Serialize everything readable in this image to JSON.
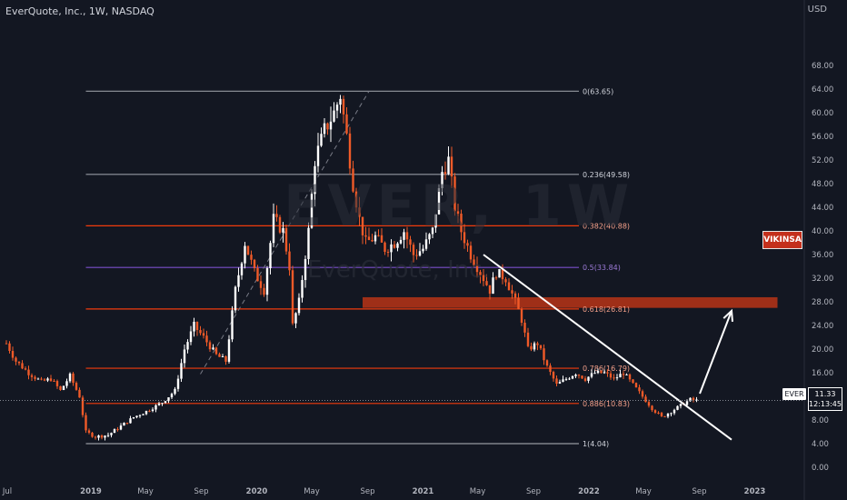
{
  "header": {
    "title": "EverQuote, Inc., 1W, NASDAQ"
  },
  "axis": {
    "currency": "USD"
  },
  "watermark": {
    "symbol_tf": "EVER, 1W",
    "company": "EverQuote, Inc."
  },
  "badge": {
    "label": "VIKINSA"
  },
  "price": {
    "symbol": "EVER",
    "last": "11.33",
    "countdown": "12:13:45"
  },
  "colors": {
    "background": "#131722",
    "up": "#ffffff",
    "down": "#f05a28",
    "fib_red": "#f23b0c",
    "fib_purple": "#7b4fc9",
    "fib_gray": "#9598a1",
    "zone": "#b83416",
    "arrow": "#ffffff"
  },
  "chart_data": {
    "type": "candlestick",
    "title": "EverQuote, Inc., 1W, NASDAQ",
    "xlabel": "",
    "ylabel": "",
    "ylim": [
      -1.5,
      76
    ],
    "y_ticks": [
      "0.00",
      "4.00",
      "8.00",
      "12.00",
      "16.00",
      "20.00",
      "24.00",
      "28.00",
      "32.00",
      "36.00",
      "40.00",
      "44.00",
      "48.00",
      "52.00",
      "56.00",
      "60.00",
      "64.00",
      "68.00"
    ],
    "x_ticks": [
      {
        "label": "Jul",
        "date": "2018-07-01"
      },
      {
        "label": "2019",
        "date": "2019-01-01"
      },
      {
        "label": "May",
        "date": "2019-05-01"
      },
      {
        "label": "Sep",
        "date": "2019-09-01"
      },
      {
        "label": "2020",
        "date": "2020-01-01"
      },
      {
        "label": "May",
        "date": "2020-05-01"
      },
      {
        "label": "Sep",
        "date": "2020-09-01"
      },
      {
        "label": "2021",
        "date": "2021-01-01"
      },
      {
        "label": "May",
        "date": "2021-05-01"
      },
      {
        "label": "Sep",
        "date": "2021-09-01"
      },
      {
        "label": "2022",
        "date": "2022-01-01"
      },
      {
        "label": "May",
        "date": "2022-05-01"
      },
      {
        "label": "Sep",
        "date": "2022-09-01"
      },
      {
        "label": "2023",
        "date": "2023-01-01"
      }
    ],
    "xlim": [
      "2018-06-15",
      "2023-04-20"
    ],
    "price_path": [
      [
        "2018-06-29",
        21
      ],
      [
        "2018-07-20",
        18
      ],
      [
        "2018-08-17",
        16
      ],
      [
        "2018-09-14",
        14.5
      ],
      [
        "2018-10-05",
        15
      ],
      [
        "2018-10-26",
        13
      ],
      [
        "2018-11-16",
        15.5
      ],
      [
        "2018-12-07",
        12
      ],
      [
        "2018-12-21",
        6
      ],
      [
        "2019-01-11",
        5.2
      ],
      [
        "2019-02-08",
        5.5
      ],
      [
        "2019-03-08",
        7
      ],
      [
        "2019-04-05",
        8.5
      ],
      [
        "2019-05-03",
        9.5
      ],
      [
        "2019-06-07",
        11
      ],
      [
        "2019-07-05",
        13
      ],
      [
        "2019-07-26",
        20
      ],
      [
        "2019-08-16",
        24
      ],
      [
        "2019-09-06",
        22
      ],
      [
        "2019-10-04",
        19
      ],
      [
        "2019-10-25",
        18
      ],
      [
        "2019-11-15",
        30
      ],
      [
        "2019-12-06",
        38
      ],
      [
        "2019-12-27",
        33
      ],
      [
        "2020-01-17",
        30
      ],
      [
        "2020-02-07",
        42
      ],
      [
        "2020-02-28",
        40
      ],
      [
        "2020-03-13",
        34
      ],
      [
        "2020-03-20",
        24
      ],
      [
        "2020-04-03",
        28
      ],
      [
        "2020-04-24",
        40
      ],
      [
        "2020-05-08",
        52
      ],
      [
        "2020-05-29",
        57
      ],
      [
        "2020-06-19",
        60
      ],
      [
        "2020-07-03",
        63
      ],
      [
        "2020-07-17",
        56
      ],
      [
        "2020-07-31",
        48
      ],
      [
        "2020-08-14",
        42
      ],
      [
        "2020-08-28",
        38
      ],
      [
        "2020-09-18",
        39
      ],
      [
        "2020-10-09",
        37
      ],
      [
        "2020-10-30",
        38
      ],
      [
        "2020-11-20",
        40
      ],
      [
        "2020-12-11",
        36
      ],
      [
        "2021-01-01",
        37
      ],
      [
        "2021-01-22",
        40
      ],
      [
        "2021-02-12",
        50
      ],
      [
        "2021-02-26",
        52
      ],
      [
        "2021-03-12",
        44
      ],
      [
        "2021-03-26",
        40
      ],
      [
        "2021-04-16",
        36
      ],
      [
        "2021-05-07",
        33
      ],
      [
        "2021-05-28",
        30
      ],
      [
        "2021-06-11",
        33
      ],
      [
        "2021-07-02",
        32
      ],
      [
        "2021-07-23",
        28
      ],
      [
        "2021-08-06",
        25
      ],
      [
        "2021-08-20",
        20
      ],
      [
        "2021-09-10",
        21
      ],
      [
        "2021-10-01",
        17
      ],
      [
        "2021-10-22",
        14
      ],
      [
        "2021-11-12",
        15
      ],
      [
        "2021-12-03",
        16
      ],
      [
        "2021-12-24",
        15
      ],
      [
        "2022-01-14",
        16
      ],
      [
        "2022-02-04",
        16
      ],
      [
        "2022-02-25",
        15
      ],
      [
        "2022-03-18",
        16
      ],
      [
        "2022-04-08",
        14
      ],
      [
        "2022-04-29",
        12
      ],
      [
        "2022-05-20",
        10
      ],
      [
        "2022-06-10",
        8.5
      ],
      [
        "2022-07-01",
        9.5
      ],
      [
        "2022-07-22",
        10.5
      ],
      [
        "2022-08-12",
        11.5
      ],
      [
        "2022-08-26",
        11.33
      ]
    ],
    "fibonacci": [
      {
        "ratio": "0",
        "price": 63.65,
        "label": "0(63.65)",
        "color": "gray"
      },
      {
        "ratio": "0.236",
        "price": 49.58,
        "label": "0.236(49.58)",
        "color": "gray"
      },
      {
        "ratio": "0.382",
        "price": 40.88,
        "label": "0.382(40.88)",
        "color": "red"
      },
      {
        "ratio": "0.5",
        "price": 33.84,
        "label": "0.5(33.84)",
        "color": "purple"
      },
      {
        "ratio": "0.618",
        "price": 26.81,
        "label": "0.618(26.81)",
        "color": "red"
      },
      {
        "ratio": "0.786",
        "price": 16.79,
        "label": "0.786(16.79)",
        "color": "red"
      },
      {
        "ratio": "0.886",
        "price": 10.83,
        "label": "0.886(10.83)",
        "color": "red"
      },
      {
        "ratio": "1",
        "price": 4.04,
        "label": "1(4.04)",
        "color": "gray"
      }
    ],
    "fib_span": [
      "2018-12-21",
      "2021-12-10"
    ],
    "fib_diagonal": [
      [
        "2019-08-30",
        15.8
      ],
      [
        "2020-09-04",
        63.65
      ]
    ],
    "resistance_zone": {
      "from": "2020-08-21",
      "to": "2023-02-20",
      "low": 27.0,
      "high": 28.8
    },
    "trendline": [
      [
        "2021-05-14",
        36
      ],
      [
        "2022-11-11",
        4.7
      ]
    ],
    "projection_arrow": [
      [
        "2022-09-02",
        12.5
      ],
      [
        "2022-11-11",
        26.5
      ]
    ],
    "last_price": 11.33
  }
}
